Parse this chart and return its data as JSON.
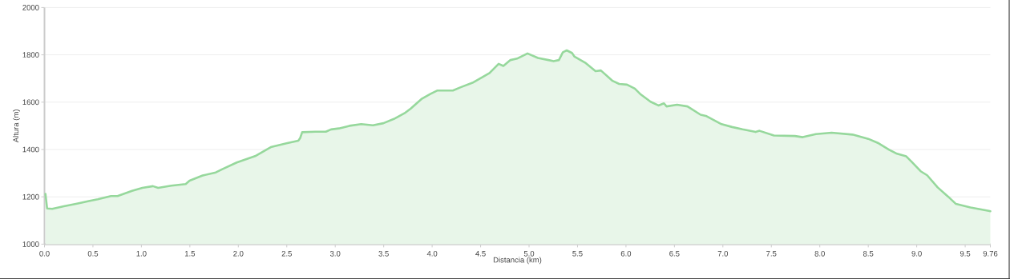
{
  "chart_data": {
    "type": "area",
    "xlabel": "Distancia (km)",
    "ylabel": "Altura (m)",
    "x": [
      0.01,
      0.027,
      0.08,
      0.2,
      0.335,
      0.457,
      0.55,
      0.686,
      0.754,
      0.903,
      1.01,
      1.119,
      1.173,
      1.308,
      1.457,
      1.497,
      1.632,
      1.768,
      1.835,
      1.984,
      2.173,
      2.335,
      2.497,
      2.619,
      2.638,
      2.659,
      2.795,
      2.903,
      2.957,
      3.038,
      3.146,
      3.268,
      3.389,
      3.497,
      3.605,
      3.714,
      3.78,
      3.889,
      3.984,
      4.051,
      4.214,
      4.295,
      4.416,
      4.524,
      4.592,
      4.686,
      4.735,
      4.808,
      4.876,
      4.984,
      5.092,
      5.2,
      5.254,
      5.308,
      5.349,
      5.389,
      5.443,
      5.47,
      5.578,
      5.686,
      5.741,
      5.862,
      5.93,
      6.011,
      6.092,
      6.146,
      6.254,
      6.335,
      6.392,
      6.419,
      6.527,
      6.635,
      6.77,
      6.824,
      6.986,
      7.095,
      7.203,
      7.338,
      7.378,
      7.527,
      7.743,
      7.824,
      7.959,
      8.122,
      8.338,
      8.5,
      8.608,
      8.716,
      8.797,
      8.892,
      8.946,
      9.041,
      9.108,
      9.216,
      9.324,
      9.405,
      9.554,
      9.743,
      9.76
    ],
    "values": [
      1212,
      1151,
      1149,
      1160,
      1171,
      1182,
      1190,
      1203,
      1203,
      1225,
      1238,
      1245,
      1238,
      1247,
      1254,
      1268,
      1290,
      1303,
      1317,
      1345,
      1372,
      1410,
      1426,
      1437,
      1448,
      1473,
      1475,
      1475,
      1485,
      1489,
      1500,
      1507,
      1502,
      1511,
      1529,
      1553,
      1573,
      1613,
      1635,
      1649,
      1649,
      1663,
      1682,
      1707,
      1723,
      1762,
      1753,
      1778,
      1784,
      1806,
      1787,
      1778,
      1773,
      1778,
      1811,
      1819,
      1808,
      1792,
      1767,
      1731,
      1734,
      1690,
      1677,
      1674,
      1657,
      1635,
      1602,
      1586,
      1595,
      1582,
      1589,
      1582,
      1547,
      1542,
      1507,
      1495,
      1485,
      1474,
      1479,
      1459,
      1457,
      1452,
      1465,
      1471,
      1463,
      1445,
      1426,
      1399,
      1382,
      1371,
      1349,
      1308,
      1291,
      1240,
      1201,
      1170,
      1155,
      1141,
      1139
    ],
    "color": "#96d89c",
    "xlim": [
      0,
      9.76
    ],
    "ylim": [
      1000,
      2000
    ],
    "xticks": [
      {
        "value": 0,
        "label": "0.0"
      },
      {
        "value": 0.5,
        "label": "0.5"
      },
      {
        "value": 1,
        "label": "1.0"
      },
      {
        "value": 1.5,
        "label": "1.5"
      },
      {
        "value": 2,
        "label": "2.0"
      },
      {
        "value": 2.5,
        "label": "2.5"
      },
      {
        "value": 3,
        "label": "3.0"
      },
      {
        "value": 3.5,
        "label": "3.5"
      },
      {
        "value": 4,
        "label": "4.0"
      },
      {
        "value": 4.5,
        "label": "4.5"
      },
      {
        "value": 5,
        "label": "5.0"
      },
      {
        "value": 5.5,
        "label": "5.5"
      },
      {
        "value": 6,
        "label": "6.0"
      },
      {
        "value": 6.5,
        "label": "6.5"
      },
      {
        "value": 7,
        "label": "7.0"
      },
      {
        "value": 7.5,
        "label": "7.5"
      },
      {
        "value": 8,
        "label": "8.0"
      },
      {
        "value": 8.5,
        "label": "8.5"
      },
      {
        "value": 9,
        "label": "9.0"
      },
      {
        "value": 9.5,
        "label": "9.5"
      },
      {
        "value": 9.76,
        "label": "9.76"
      }
    ],
    "yticks": [
      1000,
      1200,
      1400,
      1600,
      1800,
      2000
    ],
    "grid": "y"
  }
}
